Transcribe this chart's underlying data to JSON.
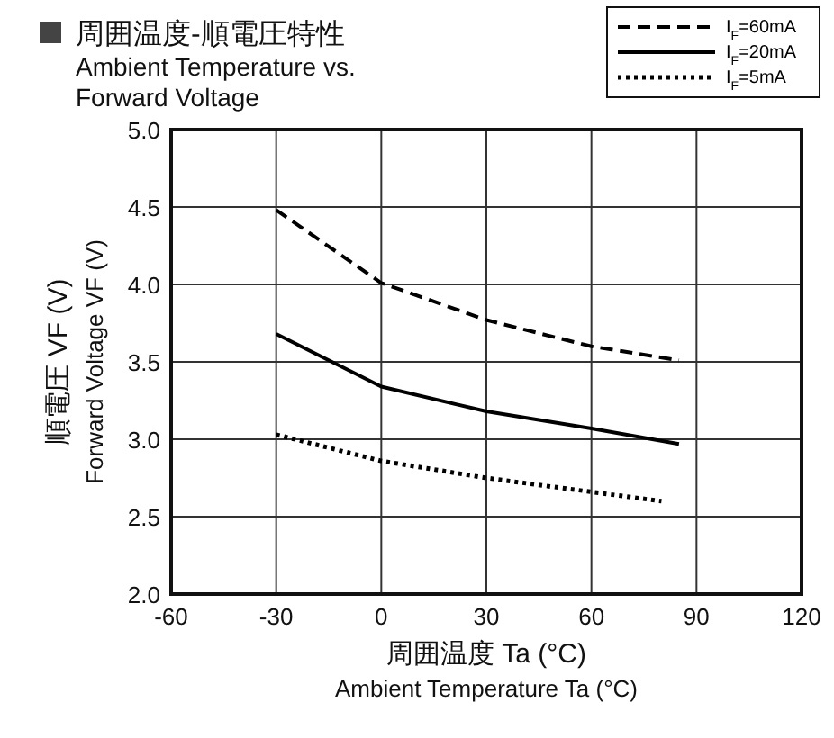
{
  "chart_data": {
    "type": "line",
    "title": "周囲温度-順電圧特性",
    "subtitle": "Ambient Temperature vs. Forward Voltage",
    "xlabel": "周囲温度 Ta (°C)\nAmbient Temperature Ta (°C)",
    "ylabel": "順電圧 VF (V)\nForward Voltage VF (V)",
    "x": [
      -30,
      0,
      30,
      60,
      85
    ],
    "series": [
      {
        "name": "I$_{F}$=60mA",
        "color": "#000000",
        "line_style": "dashed",
        "values": [
          4.48,
          4.01,
          3.77,
          3.6,
          3.51
        ]
      },
      {
        "name": "I$_{F}$=20mA",
        "color": "#000000",
        "line_style": "solid",
        "values": [
          3.68,
          3.34,
          3.18,
          3.07,
          2.97
        ]
      },
      {
        "name": "I$_{F}$=5mA",
        "color": "#000000",
        "line_style": "dotted",
        "x": [
          -30,
          0,
          30,
          60,
          80
        ],
        "values": [
          3.03,
          2.86,
          2.75,
          2.66,
          2.6
        ]
      }
    ],
    "xlim": [
      -60,
      120
    ],
    "xticks": [
      -60,
      -30,
      0,
      30,
      60,
      90,
      120
    ],
    "ylim": [
      2,
      5
    ],
    "yticks": [
      {
        "value": 2,
        "label": "2.0"
      },
      {
        "value": 2.5,
        "label": "2.5"
      },
      {
        "value": 3,
        "label": "3.0"
      },
      {
        "value": 3.5,
        "label": "3.5"
      },
      {
        "value": 4,
        "label": "4.0"
      },
      {
        "value": 4.5,
        "label": "4.5"
      },
      {
        "value": 5,
        "label": "5.0"
      }
    ],
    "grid": true,
    "legend": "top right",
    "marker": "none"
  }
}
